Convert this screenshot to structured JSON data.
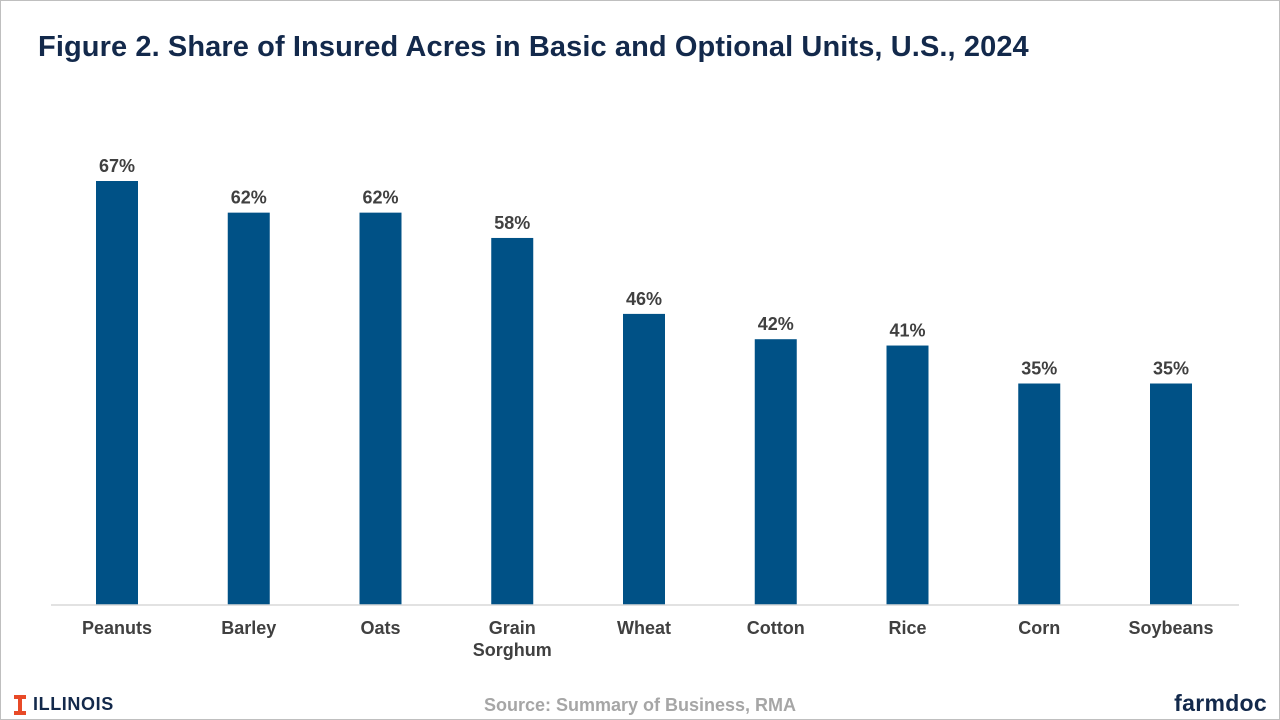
{
  "header": {
    "title": "Figure 2.  Share of Insured Acres in Basic and Optional Units, U.S., 2024"
  },
  "footer": {
    "source": "Source: Summary of Business, RMA",
    "illinois_logo_text": "ILLINOIS",
    "farmdoc_logo_text": "farmdoc"
  },
  "colors": {
    "bar": "#005186",
    "title": "#13294b",
    "illinois_orange": "#e84a27",
    "axis": "#d9d9d9"
  },
  "chart_data": {
    "type": "bar",
    "title": "Figure 2.  Share of Insured Acres in Basic and Optional Units, U.S., 2024",
    "xlabel": "",
    "ylabel": "",
    "categories": [
      [
        "Peanuts"
      ],
      [
        "Barley"
      ],
      [
        "Oats"
      ],
      [
        "Grain",
        "Sorghum"
      ],
      [
        "Wheat"
      ],
      [
        "Cotton"
      ],
      [
        "Rice"
      ],
      [
        "Corn"
      ],
      [
        "Soybeans"
      ]
    ],
    "values": [
      67,
      62,
      62,
      58,
      46,
      42,
      41,
      35,
      35
    ],
    "value_labels": [
      "67%",
      "62%",
      "62%",
      "58%",
      "46%",
      "42%",
      "41%",
      "35%",
      "35%"
    ],
    "ylim": [
      0,
      67
    ],
    "grid": false,
    "legend": "none"
  }
}
